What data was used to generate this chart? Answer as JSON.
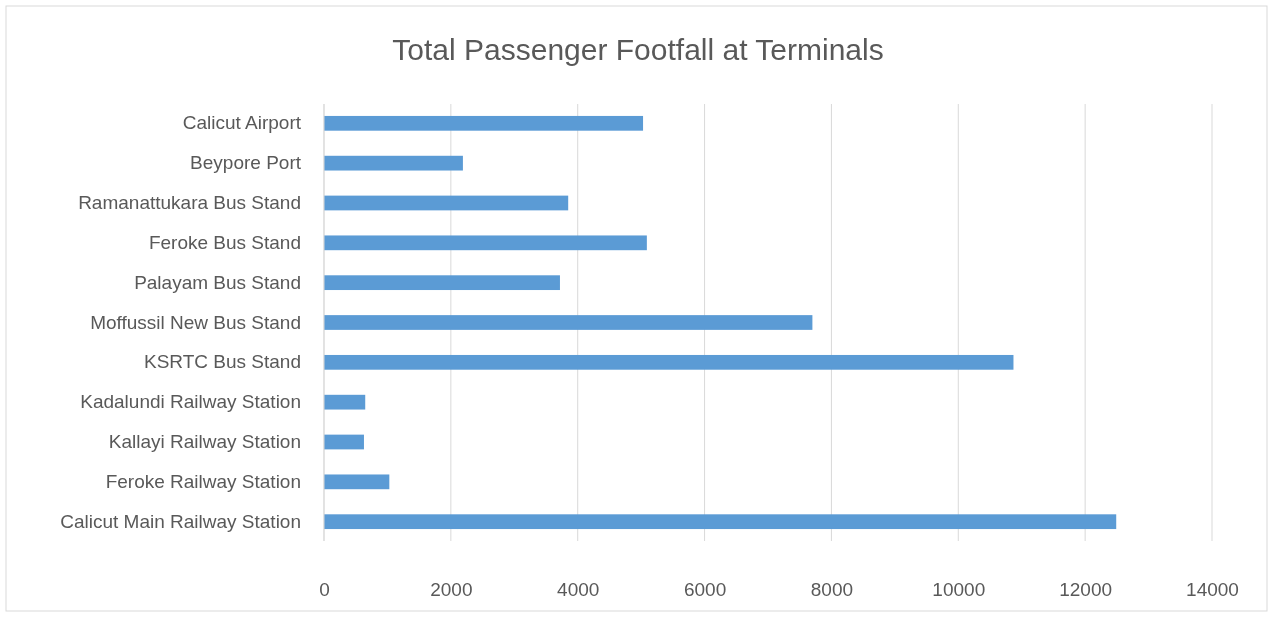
{
  "chart_data": {
    "type": "bar",
    "orientation": "horizontal",
    "title": "Total Passenger Footfall at Terminals",
    "categories": [
      "Calicut Airport",
      "Beypore Port",
      "Ramanattukara Bus Stand",
      "Feroke Bus Stand",
      "Palayam Bus Stand",
      "Moffussil New Bus Stand",
      "KSRTC Bus Stand",
      "Kadalundi Railway Station",
      "Kallayi Railway Station",
      "Feroke Railway Station",
      "Calicut Main Railway Station"
    ],
    "values": [
      5030,
      2190,
      3850,
      5090,
      3720,
      7700,
      10870,
      650,
      630,
      1030,
      12490
    ],
    "color": "#5b9bd5",
    "xlim": [
      0,
      14000
    ],
    "xticks": [
      0,
      2000,
      4000,
      6000,
      8000,
      10000,
      12000,
      14000
    ],
    "grid": "x"
  }
}
